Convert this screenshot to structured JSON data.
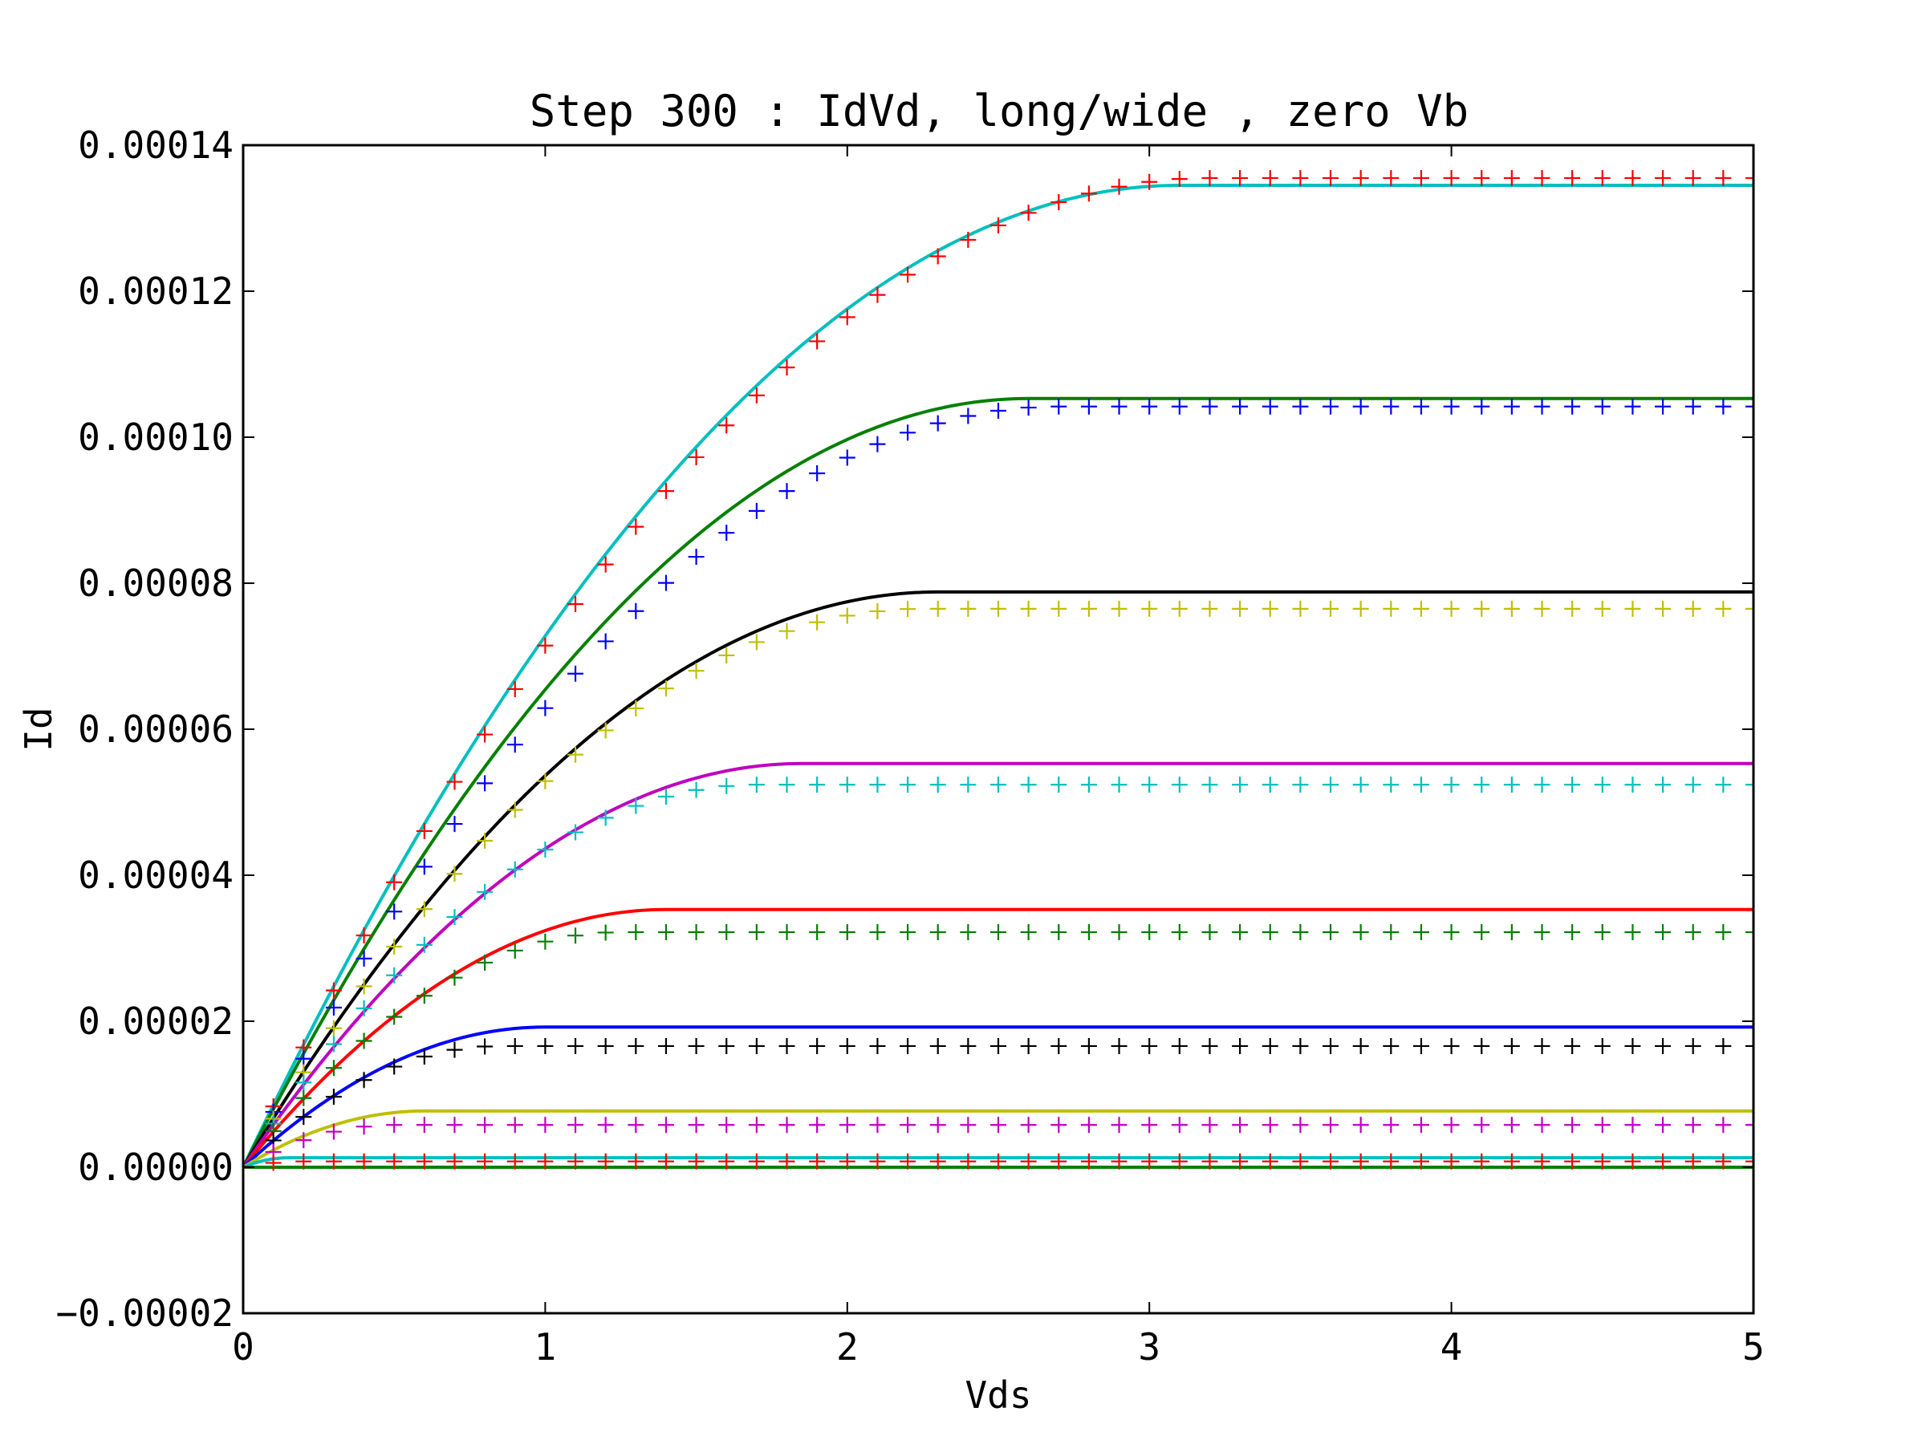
{
  "chart_data": {
    "type": "line",
    "title": "Step 300 : IdVd, long/wide , zero Vb",
    "xlabel": "Vds",
    "ylabel": "Id",
    "xlim": [
      0,
      5
    ],
    "ylim": [
      -2e-05,
      0.00014
    ],
    "xticks": [
      0,
      1,
      2,
      3,
      4,
      5
    ],
    "xtick_labels": [
      "0",
      "1",
      "2",
      "3",
      "4",
      "5"
    ],
    "yticks": [
      -2e-05,
      0,
      2e-05,
      4e-05,
      6e-05,
      8e-05,
      0.0001,
      0.00012,
      0.00014
    ],
    "ytick_labels": [
      "−0.00002",
      "0.00000",
      "0.00002",
      "0.00004",
      "0.00006",
      "0.00008",
      "0.00010",
      "0.00012",
      "0.00014"
    ],
    "grid": false,
    "legend": "none",
    "x_step": 0.1,
    "series": [
      {
        "kind": "model",
        "color": "#00bfbf",
        "isat": 0.0001345,
        "vsat": 3.1
      },
      {
        "kind": "model",
        "color": "#008000",
        "isat": 0.0001053,
        "vsat": 2.6
      },
      {
        "kind": "model",
        "color": "#000000",
        "isat": 7.88e-05,
        "vsat": 2.3
      },
      {
        "kind": "model",
        "color": "#bf00bf",
        "isat": 5.53e-05,
        "vsat": 1.85
      },
      {
        "kind": "model",
        "color": "#ff0000",
        "isat": 3.53e-05,
        "vsat": 1.4
      },
      {
        "kind": "model",
        "color": "#0000ff",
        "isat": 1.92e-05,
        "vsat": 1.0
      },
      {
        "kind": "model",
        "color": "#bfbf00",
        "isat": 7.7e-06,
        "vsat": 0.6
      },
      {
        "kind": "model",
        "color": "#00bfbf",
        "isat": 1.3e-06,
        "vsat": 0.15
      },
      {
        "kind": "model",
        "color": "#008000",
        "isat": 0.0,
        "vsat": 0.1
      },
      {
        "kind": "measured",
        "color": "#ff0000",
        "isat": 0.0001355,
        "vsat": 3.2
      },
      {
        "kind": "measured",
        "color": "#0000ff",
        "isat": 0.0001042,
        "vsat": 2.7
      },
      {
        "kind": "measured",
        "color": "#bfbf00",
        "isat": 7.65e-05,
        "vsat": 2.25
      },
      {
        "kind": "measured",
        "color": "#00bfbf",
        "isat": 5.24e-05,
        "vsat": 1.7
      },
      {
        "kind": "measured",
        "color": "#008000",
        "isat": 3.22e-05,
        "vsat": 1.25
      },
      {
        "kind": "measured",
        "color": "#000000",
        "isat": 1.66e-05,
        "vsat": 0.85
      },
      {
        "kind": "measured",
        "color": "#bf00bf",
        "isat": 5.8e-06,
        "vsat": 0.5
      },
      {
        "kind": "measured",
        "color": "#ff0000",
        "isat": 8e-07,
        "vsat": 0.2
      }
    ]
  }
}
